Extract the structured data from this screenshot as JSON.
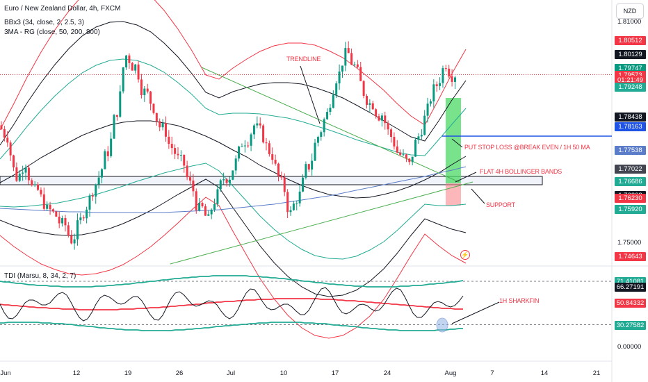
{
  "header": {
    "title": "Euro / New Zealand Dollar, 4h, FXCM",
    "indicator_bb": "BBx3 (34, close, 2, 2.5, 3)",
    "indicator_ma": "3MA - RG (close, 50, 200, 800)",
    "indicator_tdi": "TDI (Marsu, 8, 34, 2, 7)",
    "currency_button": "NZD"
  },
  "price_axis": {
    "ticks": [
      {
        "label": "1.81000",
        "value": 1.81
      },
      {
        "label": "1.75000",
        "value": 1.75
      }
    ],
    "badges": [
      {
        "label": "1.80512",
        "value": 1.80512,
        "color": "#f23645"
      },
      {
        "label": "1.80129",
        "value": 1.80129,
        "color": "#131722"
      },
      {
        "label": "1.79747",
        "value": 1.79747,
        "color": "#089981"
      },
      {
        "label": "1.79573",
        "value": 1.79573,
        "color": "#f23645"
      },
      {
        "label": "01:21:49",
        "value": 1.7944,
        "color": "#f23645"
      },
      {
        "label": "1.79248",
        "value": 1.79248,
        "color": "#22ab94"
      },
      {
        "label": "1.78438",
        "value": 1.78438,
        "color": "#131722"
      },
      {
        "label": "1.78163",
        "value": 1.78163,
        "color": "#1e53e5"
      },
      {
        "label": "1.77538",
        "value": 1.77538,
        "color": "#5b7cc9"
      },
      {
        "label": "1.77022",
        "value": 1.77022,
        "color": "#434651"
      },
      {
        "label": "1.76686",
        "value": 1.76686,
        "color": "#22ab94"
      },
      {
        "label": "1.76303",
        "value": 1.76303,
        "color": "#131722"
      },
      {
        "label": "1.76230",
        "value": 1.7623,
        "color": "#f23645"
      },
      {
        "label": "1.75920",
        "value": 1.7592,
        "color": "#22ab94"
      },
      {
        "label": "1.74643",
        "value": 1.74643,
        "color": "#f23645"
      }
    ]
  },
  "tdi_axis": {
    "ticks": [
      {
        "label": "0.00000",
        "value": 0
      }
    ],
    "badges": [
      {
        "label": "71.41081",
        "value": 71.41,
        "color": "#22ab94"
      },
      {
        "label": "66.27191",
        "value": 66.27,
        "color": "#131722"
      },
      {
        "label": "50.84332",
        "value": 50.84,
        "color": "#f23645"
      },
      {
        "label": "30.27582",
        "value": 30.28,
        "color": "#22ab94"
      }
    ]
  },
  "time_axis": {
    "labels": [
      "Jun",
      "12",
      "19",
      "26",
      "Jul",
      "10",
      "17",
      "24",
      "Aug",
      "7",
      "14",
      "21"
    ]
  },
  "annotations": {
    "trendline": "TRENDLINE",
    "stop_loss": "PUT STOP LOSS @BREAK EVEN / 1H 50 MA",
    "flat_bb": "FLAT 4H BOLLINGER BANDS",
    "support": "SUPPORT",
    "sharkfin": "1H SHARKFIN"
  },
  "colors": {
    "bull": "#089981",
    "bear": "#f23645",
    "bb_outer": "#f23645",
    "bb_mid": "#22ab94",
    "bb_inner": "#131722",
    "ma_slow": "#5b7cc9",
    "stop_line": "#1e53e5"
  },
  "chart_data": {
    "type": "candlestick",
    "symbol": "Euro / New Zealand Dollar",
    "timeframe": "4h",
    "ylim": [
      1.744,
      1.816
    ],
    "last_price": 1.79573,
    "price_levels": [
      1.80512,
      1.80129,
      1.79747,
      1.79573,
      1.79248,
      1.78438,
      1.78163,
      1.77538,
      1.77022,
      1.76686,
      1.76303,
      1.7623,
      1.7592,
      1.74643
    ],
    "close_path": [
      1.782,
      1.779,
      1.768,
      1.772,
      1.764,
      1.761,
      1.758,
      1.755,
      1.751,
      1.756,
      1.762,
      1.768,
      1.775,
      1.786,
      1.801,
      1.798,
      1.791,
      1.787,
      1.781,
      1.776,
      1.772,
      1.766,
      1.759,
      1.756,
      1.763,
      1.768,
      1.772,
      1.778,
      1.782,
      1.779,
      1.774,
      1.766,
      1.758,
      1.763,
      1.771,
      1.779,
      1.785,
      1.795,
      1.801,
      1.798,
      1.791,
      1.788,
      1.785,
      1.779,
      1.774,
      1.771,
      1.779,
      1.786,
      1.793,
      1.799,
      1.796
    ]
  }
}
